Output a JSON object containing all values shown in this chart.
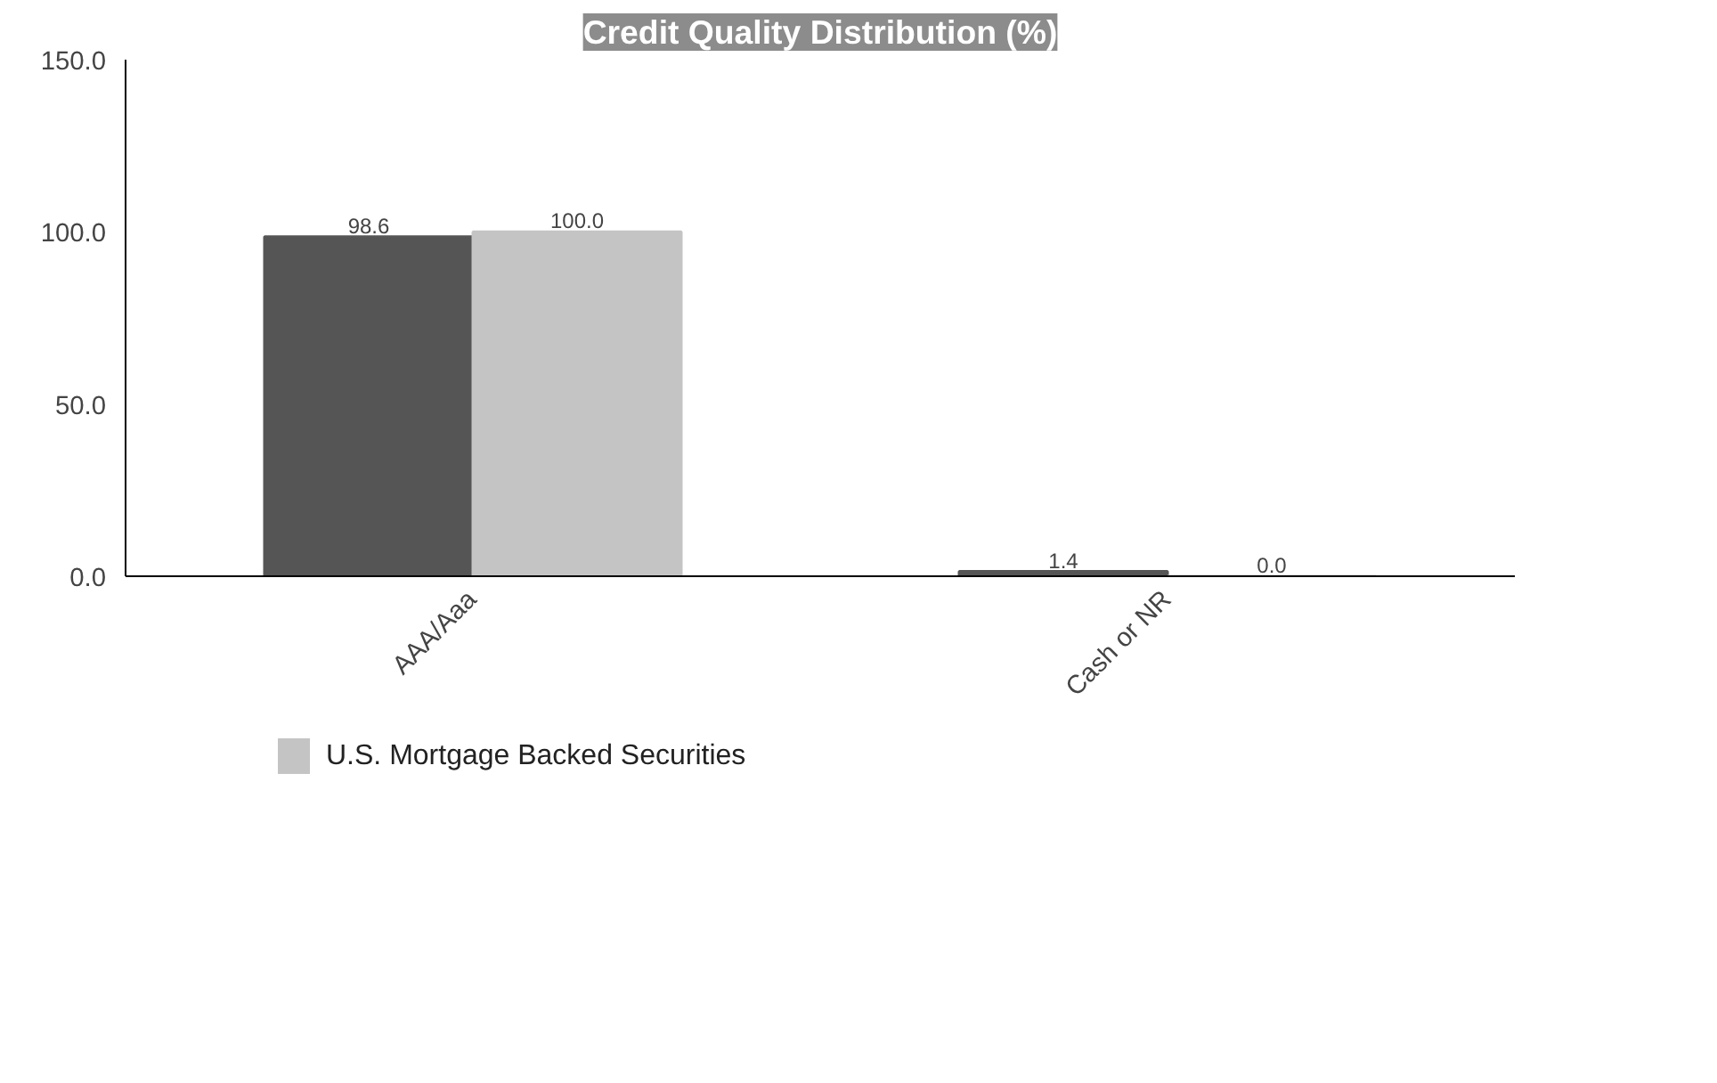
{
  "chart_data": {
    "type": "bar",
    "title": "Credit Quality Distribution (%)",
    "categories": [
      "AAA/Aaa",
      "Cash or NR"
    ],
    "series": [
      {
        "color": "#555555",
        "values": [
          98.6,
          1.4
        ],
        "value_labels": [
          "98.6",
          "1.4"
        ]
      },
      {
        "name": "U.S. Mortgage Backed Securities",
        "color": "#c4c4c4",
        "values": [
          100.0,
          0.0
        ],
        "value_labels": [
          "100.0",
          "0.0"
        ]
      }
    ],
    "ylim": [
      0,
      150
    ],
    "yticks": [
      {
        "value": 0,
        "label": "0.0"
      },
      {
        "value": 50,
        "label": "50.0"
      },
      {
        "value": 100,
        "label": "100.0"
      },
      {
        "value": 150,
        "label": "150.0"
      }
    ],
    "grid": false,
    "legend": "bottom"
  }
}
